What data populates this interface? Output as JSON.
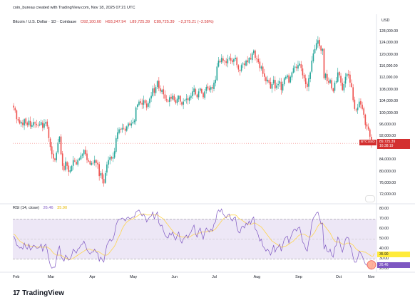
{
  "header": {
    "credit": "coin_bureau created with TradingView.com, Nov 18, 2025 07:21 UTC",
    "symbol": "Bitcoin / U.S. Dollar · 1D · Coinbase",
    "open": "O92,100.60",
    "high": "H93,247.94",
    "low": "L89,725.39",
    "close": "C89,725.39",
    "change": "−2,375.21 (−2.58%)"
  },
  "rsi_header": {
    "label": "RSI (14, close)",
    "rsi_value": "26.46",
    "ma_value": "35.90"
  },
  "price_label": {
    "symbol": "BTCUSD",
    "value": "89,725.39",
    "countdown": "16:38:19"
  },
  "rsi_tags": {
    "ma": "35.90",
    "rsi": "26.46"
  },
  "brand": {
    "name": "TradingView",
    "mark": "17"
  },
  "colors": {
    "up": "#26a69a",
    "down": "#ef5350",
    "rsi": "#7e57c2",
    "rsi_ma": "#ffd54f",
    "band_fill": "#ede7f6",
    "accent": "#d32f2f"
  },
  "chart_data": [
    {
      "type": "candlestick",
      "title": "",
      "currency": "USD",
      "y_ticks": [
        72000,
        76000,
        80000,
        84000,
        88000,
        92000,
        96000,
        100000,
        104000,
        108000,
        112000,
        116000,
        120000,
        124000,
        128000
      ],
      "y_tick_labels": [
        "72,000.00",
        "76,000.00",
        "80,000.00",
        "84,000.00",
        "88,000.00",
        "92,000.00",
        "96,000.00",
        "100,000.00",
        "104,000.00",
        "108,000.00",
        "112,000.00",
        "116,000.00",
        "120,000.00",
        "124,000.00",
        "128,000.00"
      ],
      "ylim": [
        70000,
        130000
      ],
      "x_labels": [
        "Feb",
        "Mar",
        "Apr",
        "May",
        "Jun",
        "Jul",
        "Aug",
        "Sep",
        "Oct",
        "Nov"
      ],
      "close_series": [
        102000,
        101000,
        98000,
        97500,
        96500,
        97000,
        96000,
        98000,
        96500,
        96000,
        97500,
        95500,
        96000,
        97000,
        96500,
        96000,
        95800,
        96200,
        97000,
        95000,
        96500,
        97000,
        95500,
        91500,
        88500,
        86000,
        84500,
        84000,
        86500,
        90000,
        92000,
        86000,
        82000,
        80500,
        83500,
        82000,
        80000,
        80500,
        82000,
        84000,
        83500,
        82500,
        84000,
        84500,
        85500,
        86000,
        87500,
        86000,
        84000,
        83500,
        82500,
        83000,
        83000,
        84000,
        83000,
        82500,
        78500,
        79500,
        77500,
        76000,
        79500,
        82500,
        84000,
        85000,
        84500,
        85000,
        87000,
        91500,
        93500,
        94500,
        94500,
        95000,
        94800,
        94000,
        95500,
        96500,
        96000,
        96500,
        97000,
        97500,
        102000,
        103000,
        104000,
        103500,
        103000,
        104500,
        103500,
        102000,
        103500,
        105000,
        106000,
        108500,
        107000,
        109000,
        111000,
        108500,
        107500,
        108000,
        106500,
        105000,
        104500,
        104000,
        105500,
        105000,
        106000,
        104500,
        103500,
        105000,
        106000,
        104000,
        103000,
        104000,
        104500,
        105000,
        104500,
        105500,
        106000,
        107500,
        108500,
        106500,
        105500,
        107500,
        108500,
        107000,
        105500,
        107500,
        109000,
        108500,
        108000,
        109000,
        108500,
        110500,
        111500,
        116000,
        118000,
        117500,
        119000,
        118000,
        117800,
        117300,
        118500,
        119000,
        118000,
        117500,
        118500,
        119000,
        116500,
        115000,
        114500,
        116500,
        117000,
        116500,
        118000,
        117500,
        119000,
        118500,
        120500,
        121500,
        119000,
        118500,
        117500,
        115500,
        116000,
        113500,
        112500,
        111000,
        111500,
        110500,
        108500,
        110000,
        111500,
        108500,
        109500,
        110000,
        111000,
        108000,
        110000,
        112000,
        112500,
        113000,
        110500,
        112500,
        114000,
        115500,
        116000,
        115500,
        116500,
        117000,
        115500,
        113000,
        112000,
        110000,
        109000,
        112000,
        114000,
        118000,
        120500,
        122000,
        124000,
        125000,
        123000,
        121500,
        122000,
        112000,
        113500,
        111000,
        110500,
        111500,
        108500,
        107500,
        110500,
        111000,
        114000,
        113000,
        110500,
        108000,
        110000,
        112500,
        113500,
        113000,
        110500,
        109000,
        104500,
        101500,
        101000,
        102000,
        104000,
        103000,
        101500,
        99500,
        96000,
        95500,
        94500,
        92000,
        89725
      ],
      "rsi": {
        "label": "RSI (14, close)",
        "y_ticks": [
          20,
          30,
          40,
          50,
          60,
          70,
          80
        ],
        "y_tick_labels": [
          "20.00",
          "30.00",
          "40.00",
          "50.00",
          "60.00",
          "70.00",
          "80.00"
        ],
        "band": [
          30,
          70
        ],
        "last_rsi": 26.46,
        "last_ma": 35.9,
        "rsi_series": [
          53,
          50,
          44,
          43,
          41,
          42,
          40,
          46,
          42,
          40,
          45,
          39,
          41,
          44,
          43,
          41,
          41,
          42,
          45,
          38,
          43,
          45,
          39,
          30,
          24,
          21,
          22,
          22,
          30,
          39,
          43,
          33,
          30,
          28,
          34,
          32,
          29,
          30,
          34,
          40,
          38,
          36,
          40,
          41,
          44,
          45,
          48,
          44,
          39,
          37,
          35,
          37,
          37,
          40,
          37,
          36,
          28,
          32,
          29,
          27,
          37,
          44,
          47,
          50,
          48,
          50,
          55,
          64,
          68,
          70,
          70,
          71,
          70,
          68,
          71,
          72,
          70,
          71,
          72,
          72,
          77,
          78,
          79,
          76,
          73,
          75,
          72,
          67,
          70,
          72,
          73,
          77,
          70,
          74,
          77,
          66,
          63,
          64,
          58,
          54,
          52,
          51,
          56,
          54,
          57,
          52,
          49,
          54,
          57,
          49,
          46,
          50,
          52,
          54,
          51,
          55,
          57,
          61,
          64,
          55,
          52,
          58,
          61,
          55,
          50,
          57,
          61,
          59,
          57,
          60,
          58,
          65,
          67,
          76,
          79,
          77,
          80,
          75,
          73,
          71,
          74,
          75,
          70,
          68,
          71,
          72,
          62,
          57,
          56,
          62,
          63,
          61,
          66,
          64,
          68,
          65,
          70,
          72,
          60,
          58,
          54,
          48,
          50,
          43,
          41,
          38,
          40,
          38,
          34,
          38,
          44,
          37,
          41,
          42,
          45,
          38,
          44,
          50,
          52,
          53,
          46,
          51,
          55,
          59,
          60,
          58,
          61,
          62,
          55,
          47,
          45,
          40,
          38,
          48,
          54,
          66,
          71,
          73,
          76,
          77,
          71,
          65,
          66,
          40,
          44,
          38,
          37,
          40,
          34,
          32,
          42,
          44,
          52,
          49,
          42,
          37,
          43,
          50,
          52,
          51,
          44,
          40,
          32,
          27,
          27,
          31,
          38,
          36,
          33,
          29,
          25,
          24,
          23,
          21,
          20,
          26.5
        ],
        "ma_series": [
          55,
          54,
          52,
          50,
          48,
          47,
          46,
          45,
          44,
          44,
          44,
          43,
          43,
          43,
          43,
          42,
          42,
          42,
          42,
          42,
          42,
          42,
          42,
          41,
          40,
          38,
          36,
          35,
          34,
          34,
          34,
          34,
          33,
          32,
          31,
          31,
          30,
          30,
          30,
          31,
          32,
          33,
          34,
          35,
          36,
          37,
          38,
          39,
          40,
          40,
          40,
          39,
          39,
          39,
          38,
          38,
          37,
          36,
          35,
          34,
          34,
          34,
          35,
          37,
          39,
          41,
          43,
          46,
          50,
          53,
          56,
          60,
          63,
          65,
          67,
          68,
          69,
          70,
          70,
          71,
          72,
          73,
          74,
          75,
          75,
          75,
          75,
          74,
          74,
          74,
          74,
          74,
          74,
          74,
          74,
          73,
          72,
          71,
          70,
          68,
          66,
          64,
          62,
          60,
          58,
          56,
          55,
          54,
          53,
          53,
          52,
          52,
          52,
          52,
          52,
          52,
          53,
          54,
          55,
          55,
          55,
          56,
          56,
          57,
          57,
          57,
          57,
          58,
          58,
          58,
          58,
          59,
          60,
          62,
          64,
          66,
          68,
          70,
          71,
          72,
          73,
          73,
          74,
          74,
          74,
          74,
          73,
          71,
          70,
          69,
          68,
          67,
          66,
          65,
          65,
          65,
          65,
          66,
          66,
          65,
          64,
          63,
          62,
          60,
          58,
          56,
          54,
          52,
          50,
          48,
          47,
          46,
          45,
          44,
          43,
          42,
          42,
          43,
          43,
          44,
          45,
          46,
          47,
          48,
          50,
          51,
          53,
          54,
          55,
          55,
          55,
          54,
          53,
          52,
          52,
          53,
          55,
          57,
          60,
          63,
          65,
          66,
          66,
          64,
          62,
          60,
          58,
          56,
          53,
          50,
          48,
          47,
          47,
          47,
          46,
          45,
          45,
          45,
          46,
          46,
          46,
          45,
          44,
          42,
          40,
          39,
          38,
          38,
          38,
          37,
          37,
          36,
          35,
          34,
          33,
          33,
          35.9
        ]
      }
    }
  ]
}
